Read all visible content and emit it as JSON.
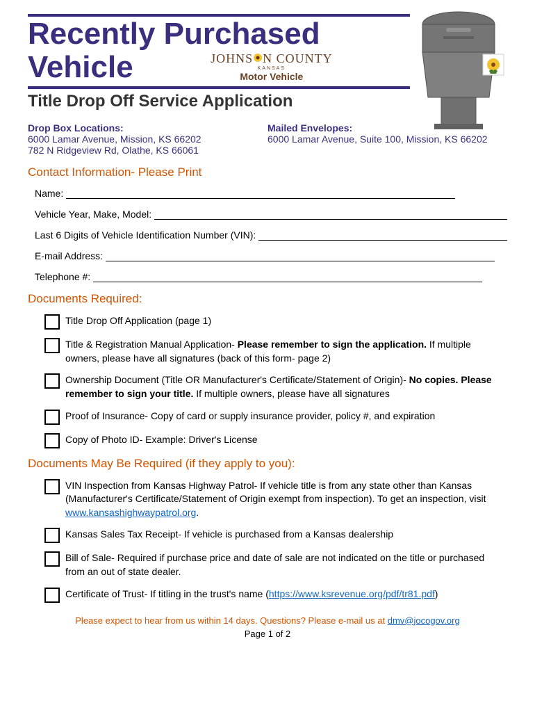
{
  "header": {
    "title_line1": "Recently Purchased",
    "title_line2": "Vehicle",
    "logo_text": "JOHNS   N COUNTY",
    "logo_kansas": "KANSAS",
    "logo_sub": "Motor Vehicle",
    "subtitle": "Title Drop Off Service Application"
  },
  "locations": {
    "drop_heading": "Drop Box Locations:",
    "drop_addr1": "6000 Lamar Avenue, Mission, KS 66202",
    "drop_addr2": "782 N Ridgeview Rd, Olathe, KS 66061",
    "mail_heading": "Mailed Envelopes:",
    "mail_addr": " 6000 Lamar Avenue, Suite 100, Mission, KS 66202"
  },
  "contact": {
    "heading": "Contact Information- Please Print",
    "name_label": "Name: ",
    "vehicle_label": "Vehicle Year, Make, Model: ",
    "vin_label": "Last 6 Digits of Vehicle Identification Number (VIN): ",
    "email_label": "E-mail Address: ",
    "phone_label": "Telephone #: "
  },
  "required": {
    "heading": "Documents Required:",
    "items": [
      {
        "pre": "Title Drop Off Application (page 1)",
        "bold": "",
        "post": ""
      },
      {
        "pre": "Title & Registration Manual Application- ",
        "bold": "Please remember to sign the application.",
        "post": " If multiple owners, please have all signatures (back of this form- page 2)"
      },
      {
        "pre": "Ownership Document (Title OR Manufacturer's Certificate/Statement of Origin)- ",
        "bold": "No copies. Please remember to sign your title.",
        "post": " If multiple owners, please have all signatures"
      },
      {
        "pre": "Proof of Insurance- Copy of card or supply insurance provider, policy #, and expiration",
        "bold": "",
        "post": ""
      },
      {
        "pre": "Copy of Photo ID- Example: Driver's License",
        "bold": "",
        "post": ""
      }
    ]
  },
  "maybe": {
    "heading": "Documents May Be Required (if they apply to you):",
    "items": [
      {
        "pre": "VIN Inspection from Kansas Highway Patrol- If vehicle title is from any state other than Kansas (Manufacturer's Certificate/Statement of Origin exempt from inspection). To get an inspection, visit ",
        "link": "www.kansashighwaypatrol.org",
        "post": "."
      },
      {
        "pre": "Kansas Sales Tax Receipt- If vehicle is purchased from a Kansas dealership",
        "link": "",
        "post": ""
      },
      {
        "pre": "Bill of Sale- Required if purchase price and date of sale are not indicated on the title or purchased from an out of state dealer.",
        "link": "",
        "post": ""
      },
      {
        "pre": "Certificate of Trust- If titling in the trust's name (",
        "link": "https://www.ksrevenue.org/pdf/tr81.pdf",
        "post": ")"
      }
    ]
  },
  "footer": {
    "note_pre": "Please expect to hear from us within 14 days. Questions? Please e-mail us at ",
    "note_link": "dmv@jocogov.org",
    "page": "Page 1 of 2"
  },
  "colors": {
    "purple": "#3b2e7e",
    "orange": "#d35400",
    "brown": "#6b4226",
    "link": "#1565c0",
    "mailbox_body": "#808080",
    "mailbox_dark": "#606060"
  }
}
